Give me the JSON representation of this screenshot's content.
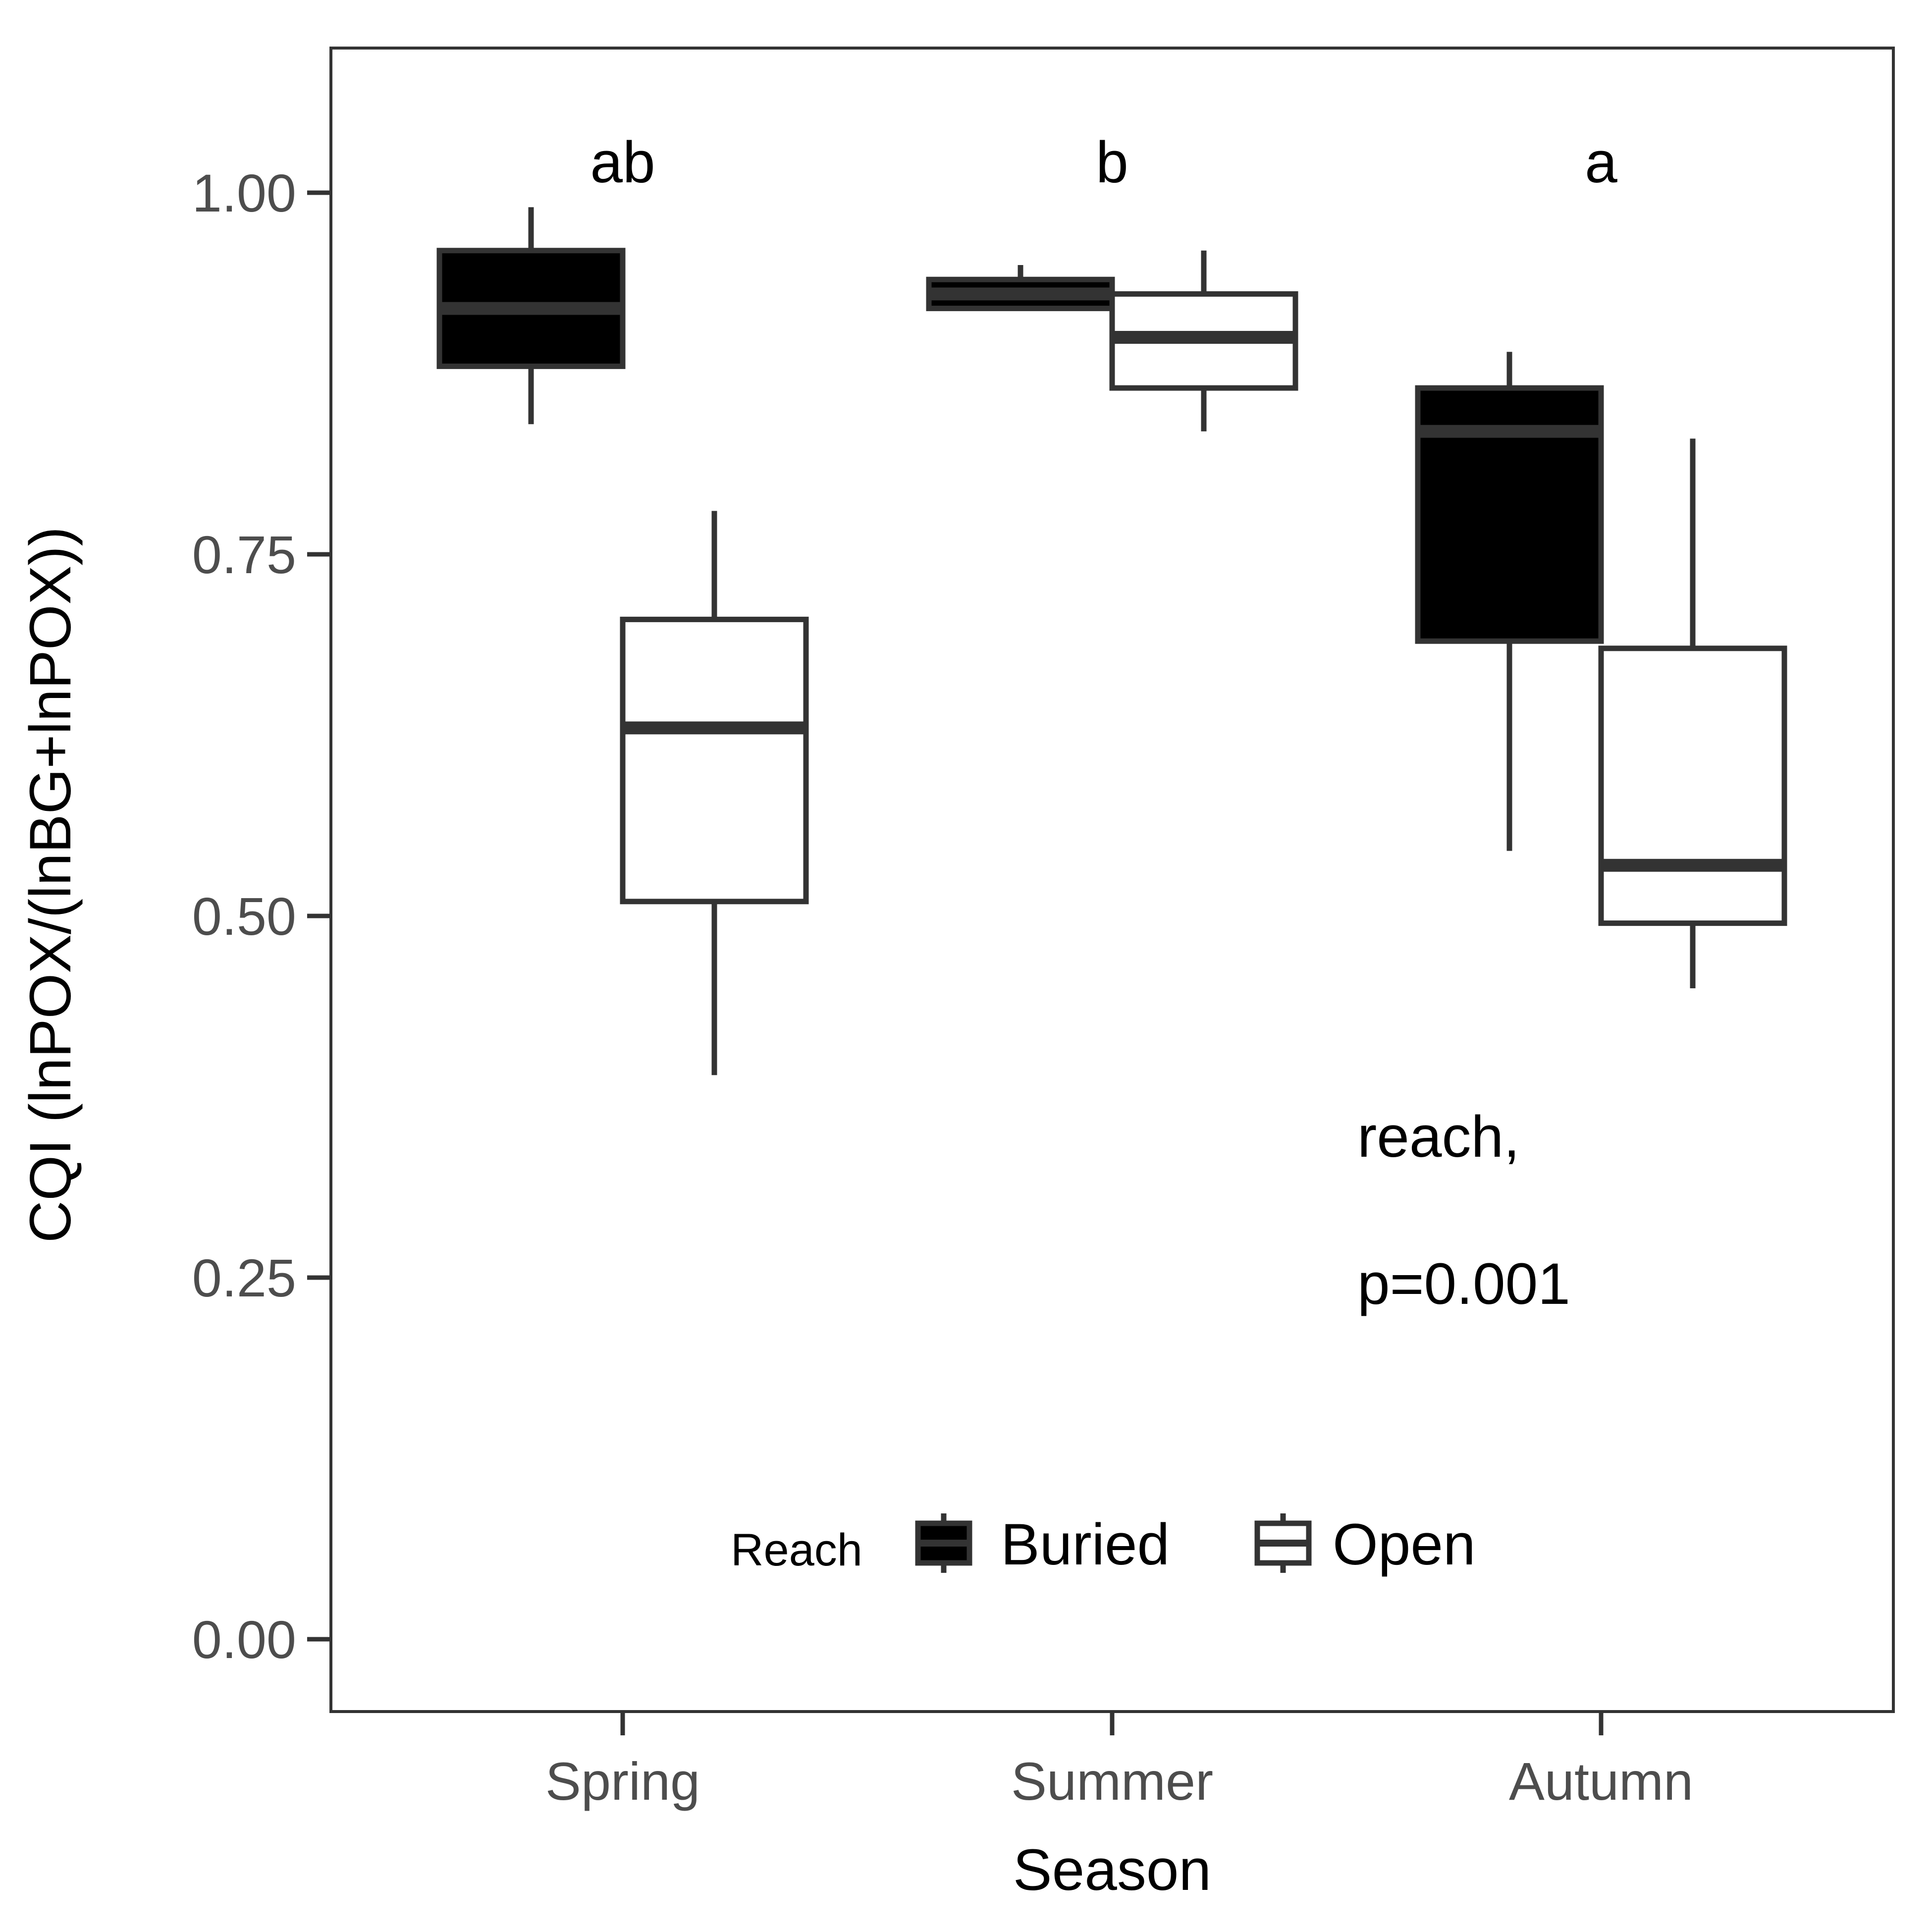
{
  "chart_data": {
    "type": "box",
    "xlabel": "Season",
    "ylabel": "CQI (lnPOX/(lnBG+lnPOX))",
    "ylim": [
      -0.05,
      1.1
    ],
    "yticks": [
      0.0,
      0.25,
      0.5,
      0.75,
      1.0
    ],
    "ytick_labels": [
      "0.00",
      "0.25",
      "0.50",
      "0.75",
      "1.00"
    ],
    "categories": [
      "Spring",
      "Summer",
      "Autumn"
    ],
    "group_letters": [
      "ab",
      "b",
      "a"
    ],
    "legend": {
      "title": "Reach",
      "position": "bottom-center"
    },
    "series": [
      {
        "name": "Buried",
        "fill": "#000000",
        "stroke": "#333333",
        "boxes": [
          {
            "min": 0.84,
            "q1": 0.88,
            "median": 0.92,
            "q3": 0.96,
            "max": 0.99
          },
          {
            "min": 0.92,
            "q1": 0.92,
            "median": 0.93,
            "q3": 0.94,
            "max": 0.95
          },
          {
            "min": 0.545,
            "q1": 0.69,
            "median": 0.835,
            "q3": 0.865,
            "max": 0.89
          }
        ]
      },
      {
        "name": "Open",
        "fill": "#ffffff",
        "stroke": "#333333",
        "boxes": [
          {
            "min": 0.39,
            "q1": 0.51,
            "median": 0.63,
            "q3": 0.705,
            "max": 0.78
          },
          {
            "min": 0.835,
            "q1": 0.865,
            "median": 0.9,
            "q3": 0.93,
            "max": 0.96
          },
          {
            "min": 0.45,
            "q1": 0.495,
            "median": 0.535,
            "q3": 0.685,
            "max": 0.83
          }
        ]
      }
    ],
    "annotation": {
      "line1": "reach,",
      "line2": "p=0.001"
    }
  }
}
